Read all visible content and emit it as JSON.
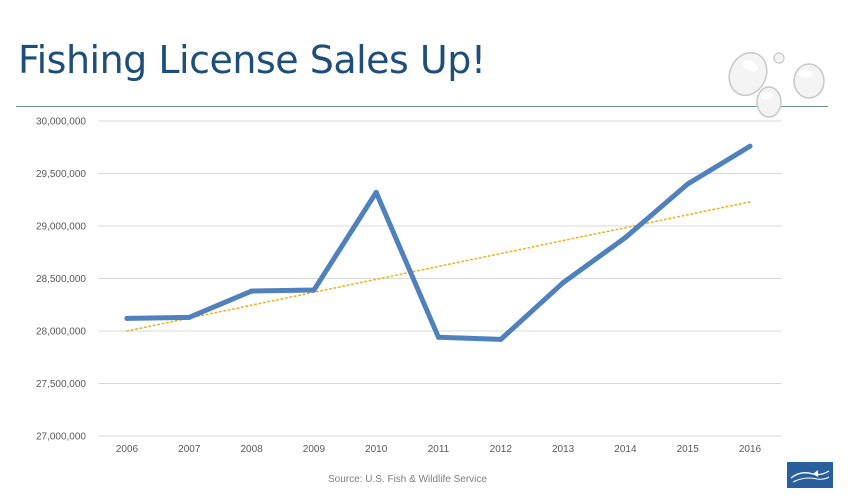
{
  "slide": {
    "title": "Fishing License Sales Up!",
    "source": "Source: U.S. Fish & Wildlife Service",
    "accent_color": "#1f4e79"
  },
  "icons": {
    "decoration": "bubbles-icon",
    "logo": "fish-wildlife-logo-icon"
  },
  "chart_data": {
    "type": "line",
    "title": "",
    "xlabel": "",
    "ylabel": "",
    "categories": [
      "2006",
      "2007",
      "2008",
      "2009",
      "2010",
      "2011",
      "2012",
      "2013",
      "2014",
      "2015",
      "2016"
    ],
    "series": [
      {
        "values": [
          28120000,
          28130000,
          28380000,
          28390000,
          29320000,
          27940000,
          27920000,
          28460000,
          28890000,
          29400000,
          29760000
        ],
        "color": "#4f81bd"
      }
    ],
    "trendline": {
      "type": "linear",
      "start": 28000000,
      "end": 29230000,
      "color": "#f0b323",
      "style": "dotted"
    },
    "ylim": [
      27000000,
      30000000
    ],
    "yticks": [
      27000000,
      27500000,
      28000000,
      28500000,
      29000000,
      29500000,
      30000000
    ],
    "ytick_labels": [
      "27,000,000",
      "27,500,000",
      "28,000,000",
      "28,500,000",
      "29,000,000",
      "29,500,000",
      "30,000,000"
    ],
    "grid": true,
    "legend": "none"
  }
}
